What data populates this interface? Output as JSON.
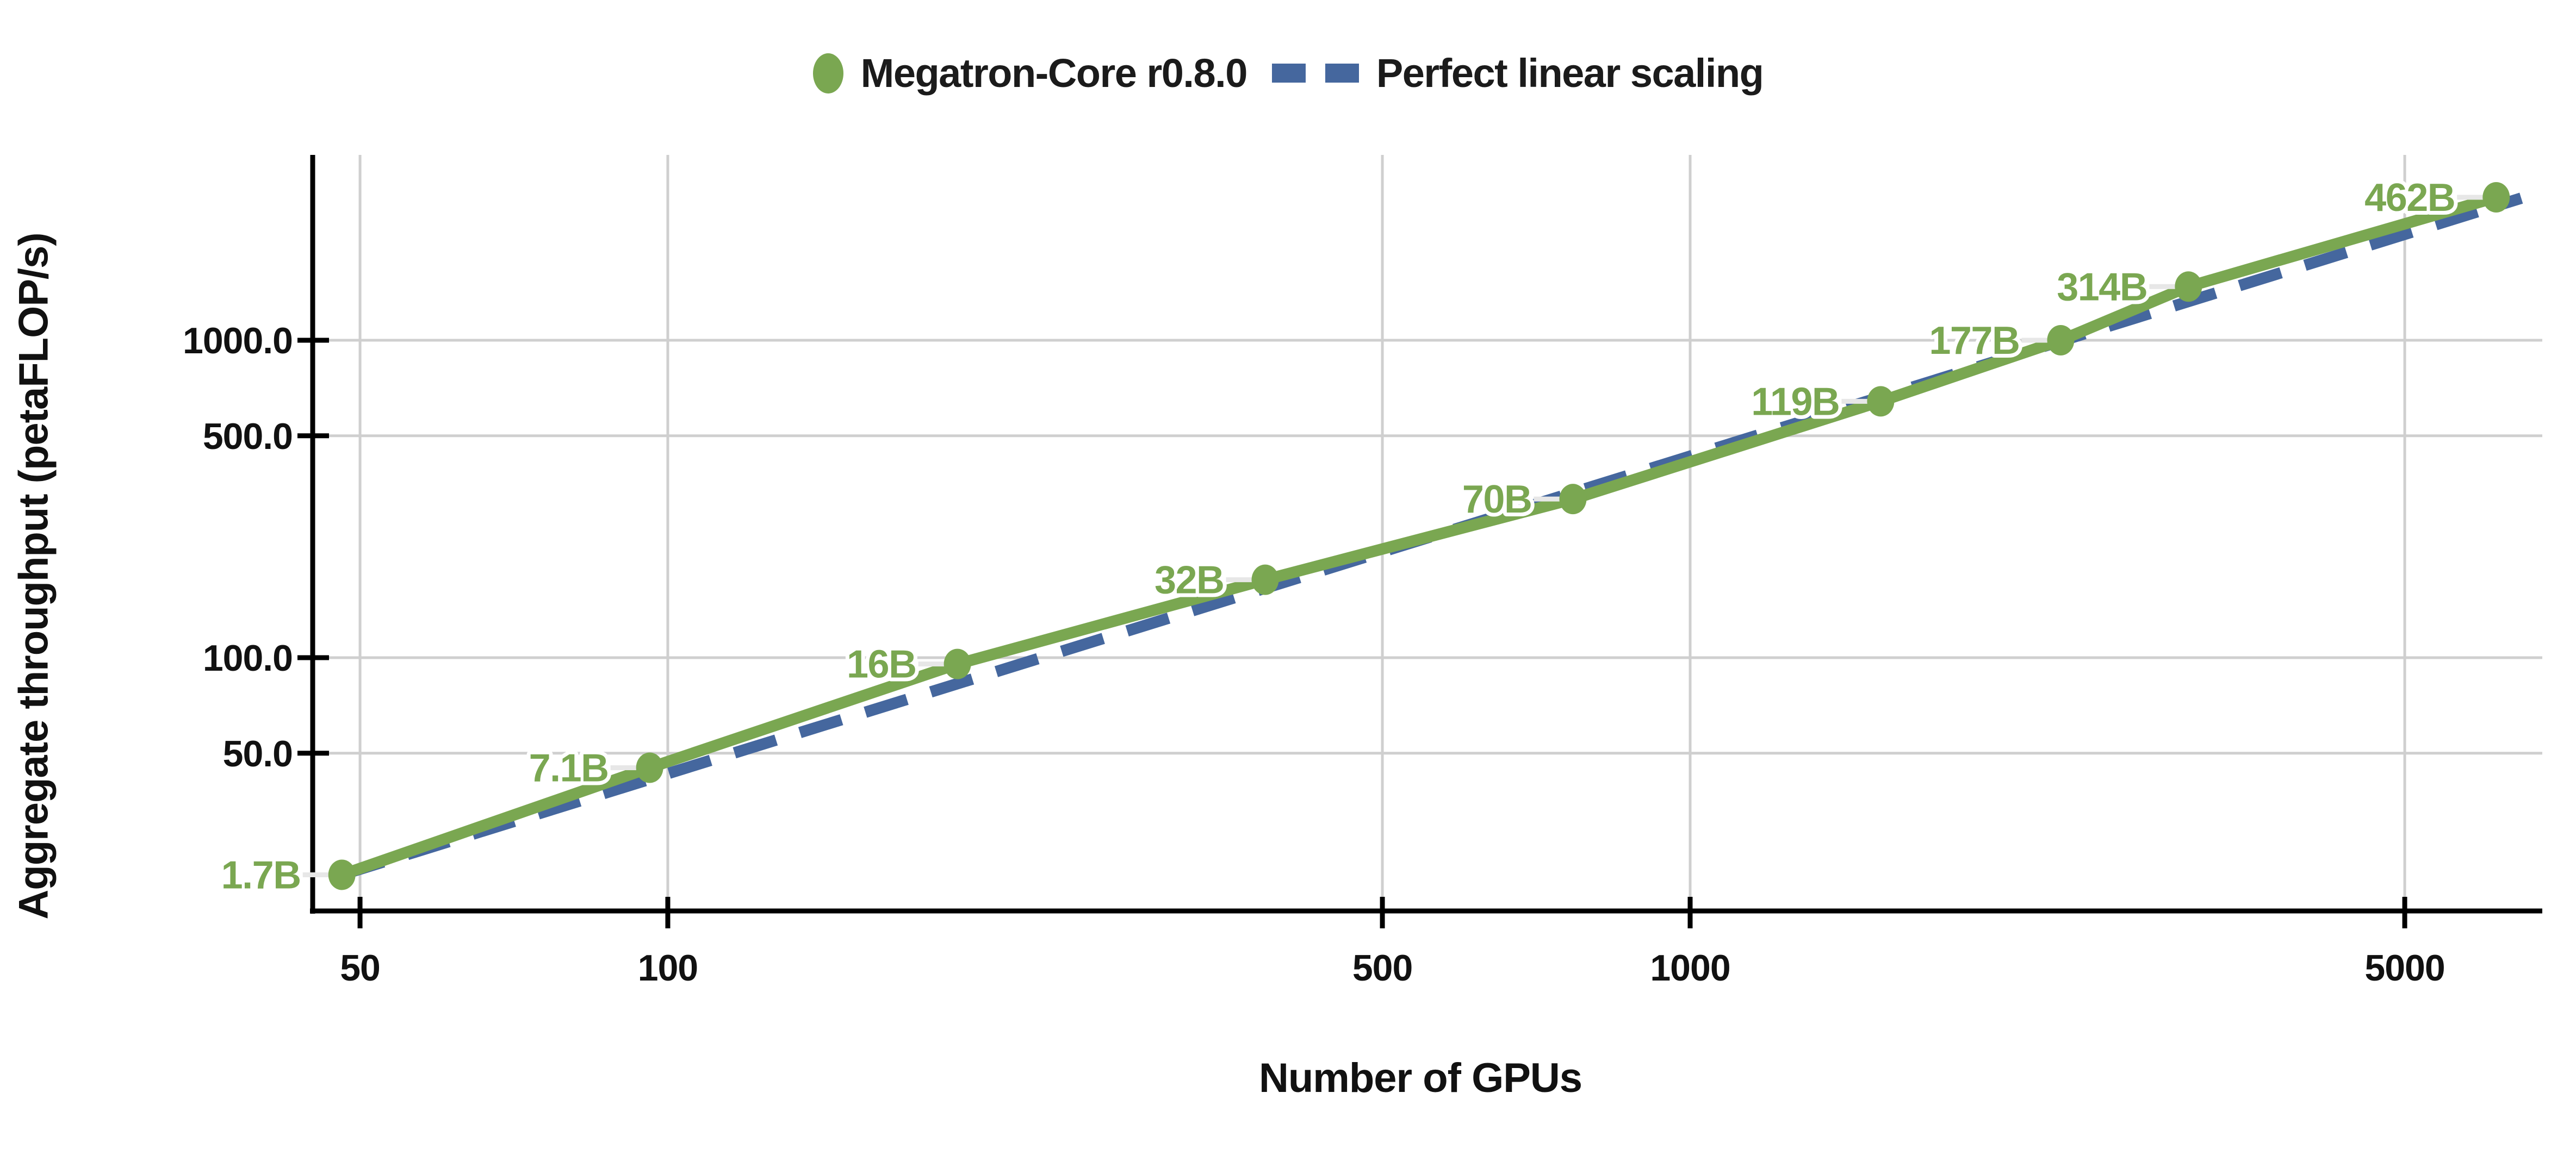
{
  "page": {
    "background": "#ffffff"
  },
  "legend": {
    "items": [
      {
        "label": "Megatron-Core r0.8.0",
        "swatch": "dot",
        "color": "#7AA751"
      },
      {
        "label": "Perfect linear scaling",
        "swatch": "dashes",
        "color": "#45679E"
      }
    ]
  },
  "chart_data": {
    "type": "line",
    "title": "",
    "xlabel": "Number of GPUs",
    "ylabel": "Aggregate throughput (petaFLOP/s)",
    "x_scale": "log",
    "y_scale": "log",
    "xlim": [
      45,
      6700
    ],
    "ylim": [
      15,
      3900
    ],
    "grid": true,
    "legend_position": "top-center",
    "x_units": "GPUs",
    "y_units": "petaFLOP/s",
    "x_ticks": [
      {
        "v": 50,
        "label": "50"
      },
      {
        "v": 100,
        "label": "100"
      },
      {
        "v": 500,
        "label": "500"
      },
      {
        "v": 1000,
        "label": "1000"
      },
      {
        "v": 5000,
        "label": "5000"
      }
    ],
    "y_ticks": [
      {
        "v": 1000,
        "label": "1000.0"
      },
      {
        "v": 500,
        "label": "500.0"
      },
      {
        "v": 100,
        "label": "100.0"
      },
      {
        "v": 50,
        "label": "50.0"
      }
    ],
    "series": [
      {
        "name": "Megatron-Core r0.8.0",
        "color": "#7AA751",
        "style": "solid_markers",
        "points": [
          {
            "x": 48,
            "y": 20.7,
            "label": "1.7B"
          },
          {
            "x": 96,
            "y": 45,
            "label": "7.1B"
          },
          {
            "x": 192,
            "y": 95.5,
            "label": "16B"
          },
          {
            "x": 384,
            "y": 176,
            "label": "32B"
          },
          {
            "x": 768,
            "y": 316,
            "label": "70B"
          },
          {
            "x": 1536,
            "y": 642,
            "label": "119B"
          },
          {
            "x": 2304,
            "y": 1000,
            "label": "177B"
          },
          {
            "x": 3072,
            "y": 1476,
            "label": "314B"
          },
          {
            "x": 6144,
            "y": 2820,
            "label": "462B"
          }
        ]
      },
      {
        "name": "Perfect linear scaling",
        "color": "#45679E",
        "style": "dashed",
        "points": [
          {
            "x": 48,
            "y": 20.7
          },
          {
            "x": 6500,
            "y": 2803
          }
        ]
      }
    ]
  }
}
